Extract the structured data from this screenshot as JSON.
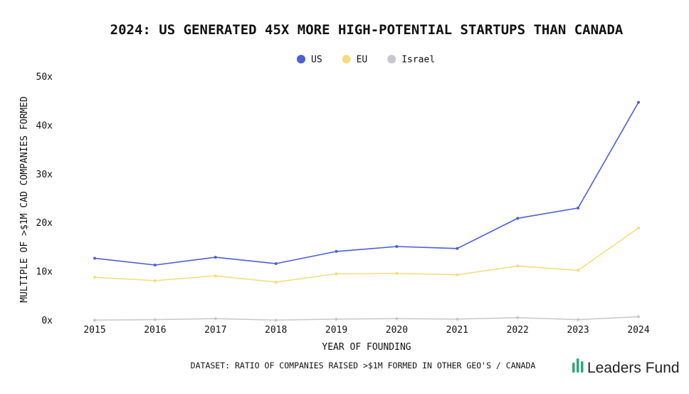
{
  "chart_data": {
    "type": "line",
    "title": "2024: US GENERATED 45X MORE HIGH-POTENTIAL STARTUPS THAN CANADA",
    "xlabel": "YEAR OF FOUNDING",
    "ylabel": "MULTIPLE OF >$1M CAD COMPANIES FORMED",
    "categories": [
      "2015",
      "2016",
      "2017",
      "2018",
      "2019",
      "2020",
      "2021",
      "2022",
      "2023",
      "2024"
    ],
    "ylim": [
      0,
      50
    ],
    "yticks": [
      0,
      10,
      20,
      30,
      40,
      50
    ],
    "ytick_labels": [
      "0x",
      "10x",
      "20x",
      "30x",
      "40x",
      "50x"
    ],
    "grid": false,
    "legend_position": "top-center",
    "series": [
      {
        "name": "US",
        "color": "#4a5fd9",
        "values": [
          12.8,
          11.4,
          13.0,
          11.7,
          14.2,
          15.2,
          14.8,
          21.0,
          23.1,
          44.8
        ]
      },
      {
        "name": "EU",
        "color": "#f5dc7a",
        "values": [
          8.9,
          8.2,
          9.2,
          7.9,
          9.6,
          9.7,
          9.4,
          11.2,
          10.3,
          19.0
        ]
      },
      {
        "name": "Israel",
        "color": "#c8c8cc",
        "values": [
          0.1,
          0.2,
          0.4,
          0.1,
          0.3,
          0.4,
          0.3,
          0.6,
          0.2,
          0.8
        ]
      }
    ]
  },
  "footer": {
    "dataset_note": "DATASET: RATIO OF COMPANIES RAISED >$1M FORMED IN OTHER GEO'S / CANADA",
    "brand": "Leaders Fund",
    "brand_color": "#2aa876"
  }
}
